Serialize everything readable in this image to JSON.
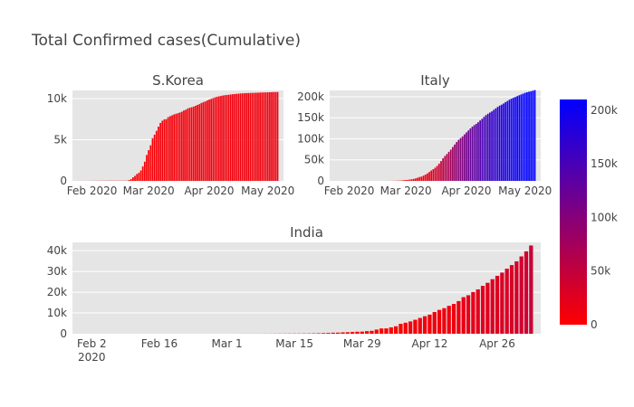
{
  "title": "Total Confirmed cases(Cumulative)",
  "colors": {
    "plot_bg": "#e5e5e5",
    "colorscale_low": "#ff0000",
    "colorscale_high": "#0000ff"
  },
  "colorbar": {
    "min": 0,
    "max": 210000,
    "ticks": [
      0,
      50000,
      100000,
      150000,
      200000
    ],
    "tick_labels": [
      "0",
      "50k",
      "100k",
      "150k",
      "200k"
    ]
  },
  "chart_data": [
    {
      "type": "bar",
      "title": "S.Korea",
      "x_start": "2020-01-22",
      "x_end": "2020-05-06",
      "xlim": [
        "2020-01-22",
        "2020-05-09"
      ],
      "ylim": [
        0,
        11000
      ],
      "yticks": [
        0,
        5000,
        10000
      ],
      "ytick_labels": [
        "0",
        "5k",
        "10k"
      ],
      "xticks": [
        "2020-02-01",
        "2020-03-01",
        "2020-04-01",
        "2020-05-01"
      ],
      "xtick_labels": [
        "Feb 2020",
        "Mar 2020",
        "Apr 2020",
        "May 2020"
      ],
      "values": [
        1,
        1,
        2,
        2,
        3,
        4,
        4,
        4,
        4,
        11,
        12,
        15,
        15,
        16,
        19,
        23,
        24,
        24,
        25,
        27,
        28,
        28,
        28,
        28,
        28,
        29,
        30,
        31,
        31,
        104,
        204,
        433,
        602,
        833,
        977,
        1261,
        1766,
        2337,
        3150,
        3736,
        4335,
        5186,
        5621,
        6088,
        6593,
        7041,
        7314,
        7478,
        7513,
        7755,
        7869,
        7979,
        8086,
        8162,
        8236,
        8320,
        8413,
        8565,
        8652,
        8799,
        8897,
        8961,
        9037,
        9137,
        9241,
        9332,
        9478,
        9583,
        9661,
        9786,
        9887,
        9976,
        10062,
        10156,
        10237,
        10284,
        10331,
        10384,
        10423,
        10450,
        10480,
        10512,
        10537,
        10564,
        10591,
        10613,
        10635,
        10653,
        10661,
        10674,
        10683,
        10694,
        10702,
        10708,
        10718,
        10728,
        10738,
        10752,
        10761,
        10765,
        10774,
        10780,
        10793,
        10801,
        10804,
        10806
      ]
    },
    {
      "type": "bar",
      "title": "Italy",
      "x_start": "2020-01-22",
      "x_end": "2020-05-06",
      "xlim": [
        "2020-01-22",
        "2020-05-09"
      ],
      "ylim": [
        0,
        215000
      ],
      "yticks": [
        0,
        50000,
        100000,
        150000,
        200000
      ],
      "ytick_labels": [
        "0",
        "50k",
        "100k",
        "150k",
        "200k"
      ],
      "xticks": [
        "2020-02-01",
        "2020-03-01",
        "2020-04-01",
        "2020-05-01"
      ],
      "xtick_labels": [
        "Feb 2020",
        "Mar 2020",
        "Apr 2020",
        "May 2020"
      ],
      "values": [
        0,
        0,
        0,
        0,
        0,
        0,
        0,
        0,
        0,
        2,
        2,
        2,
        2,
        2,
        2,
        2,
        3,
        3,
        3,
        3,
        3,
        3,
        3,
        3,
        3,
        3,
        3,
        3,
        3,
        20,
        62,
        155,
        229,
        322,
        453,
        655,
        888,
        1128,
        1694,
        2036,
        2502,
        3089,
        3858,
        4636,
        5883,
        7375,
        9172,
        10149,
        12462,
        15113,
        17660,
        21157,
        24747,
        27980,
        31506,
        35713,
        41035,
        47021,
        53578,
        59138,
        63927,
        69176,
        74386,
        80589,
        86498,
        92472,
        97689,
        101739,
        105792,
        110574,
        115242,
        119827,
        124632,
        128948,
        132547,
        135586,
        139422,
        143626,
        147577,
        152271,
        156363,
        159516,
        162488,
        165155,
        168941,
        172434,
        175925,
        178972,
        181228,
        183957,
        187327,
        189973,
        192994,
        195351,
        197675,
        199414,
        201505,
        203591,
        205463,
        207428,
        209328,
        210717,
        211938,
        213013,
        214457,
        215858
      ]
    },
    {
      "type": "bar",
      "title": "India",
      "x_start": "2020-01-30",
      "x_end": "2020-05-04",
      "xlim": [
        "2020-01-29",
        "2020-05-05"
      ],
      "ylim": [
        0,
        44000
      ],
      "yticks": [
        0,
        10000,
        20000,
        30000,
        40000
      ],
      "ytick_labels": [
        "0",
        "10k",
        "20k",
        "30k",
        "40k"
      ],
      "xticks": [
        "2020-02-02",
        "2020-02-16",
        "2020-03-01",
        "2020-03-15",
        "2020-03-29",
        "2020-04-12",
        "2020-04-26"
      ],
      "xtick_labels": [
        "Feb 2",
        "Feb 16",
        "Mar 1",
        "Mar 15",
        "Mar 29",
        "Apr 12",
        "Apr 26"
      ],
      "xtick_sublabel": "2020",
      "values": [
        1,
        1,
        1,
        2,
        3,
        3,
        3,
        3,
        3,
        3,
        3,
        3,
        3,
        3,
        3,
        3,
        3,
        3,
        3,
        3,
        3,
        3,
        3,
        3,
        3,
        3,
        3,
        3,
        3,
        3,
        3,
        3,
        5,
        5,
        28,
        30,
        31,
        34,
        39,
        43,
        56,
        62,
        73,
        82,
        102,
        113,
        119,
        142,
        156,
        194,
        244,
        330,
        396,
        499,
        536,
        657,
        727,
        887,
        987,
        1024,
        1251,
        1397,
        1998,
        2543,
        2567,
        3082,
        3588,
        4778,
        5311,
        5916,
        6725,
        7598,
        8446,
        9205,
        10453,
        11487,
        12322,
        13430,
        14352,
        15722,
        17615,
        18539,
        20080,
        21370,
        23077,
        24530,
        26283,
        27890,
        29451,
        31324,
        33062,
        34863,
        37257,
        39699,
        42505
      ]
    }
  ]
}
